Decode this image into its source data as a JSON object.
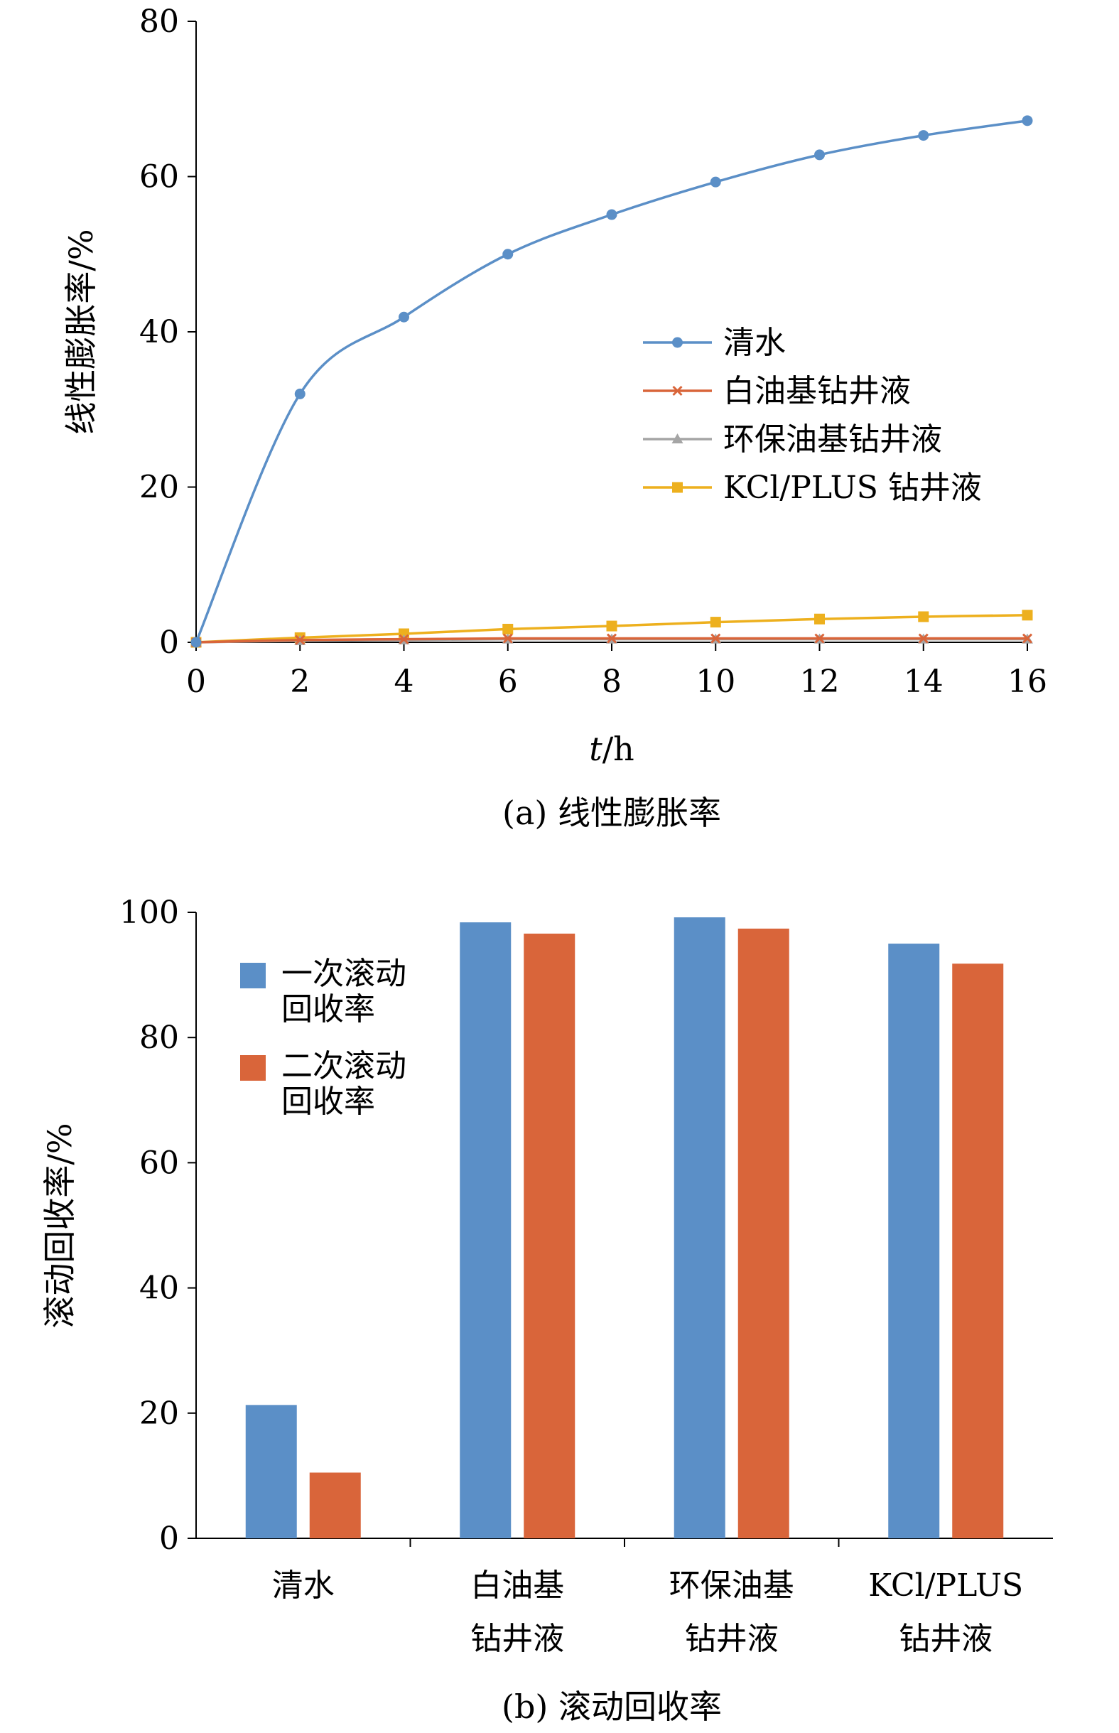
{
  "chart_data": [
    {
      "type": "line",
      "caption": "(a) 线性膨胀率",
      "xlabel_italic": "t",
      "xlabel_unit": "/h",
      "ylabel": "线性膨胀率/%",
      "xlim": [
        0,
        16
      ],
      "ylim": [
        0,
        80
      ],
      "xticks": [
        0,
        2,
        4,
        6,
        8,
        10,
        12,
        14,
        16
      ],
      "yticks": [
        0,
        20,
        40,
        60,
        80
      ],
      "grid": false,
      "legend_position": "center-right",
      "x": [
        0,
        2,
        4,
        6,
        8,
        10,
        12,
        14,
        16
      ],
      "series": [
        {
          "name": "清水",
          "color": "#5B8FC7",
          "marker": "circle",
          "values": [
            0,
            32.0,
            41.9,
            50.0,
            55.1,
            59.3,
            62.8,
            65.3,
            67.2
          ]
        },
        {
          "name": "白油基钻井液",
          "color": "#D9653A",
          "marker": "x",
          "values": [
            0,
            0.3,
            0.4,
            0.5,
            0.5,
            0.5,
            0.5,
            0.5,
            0.5
          ]
        },
        {
          "name": "环保油基钻井液",
          "color": "#A5A5A5",
          "marker": "triangle",
          "values": [
            0,
            0.2,
            0.3,
            0.4,
            0.4,
            0.4,
            0.4,
            0.4,
            0.4
          ]
        },
        {
          "name": "KCl/PLUS 钻井液",
          "color": "#EDB01E",
          "marker": "square",
          "values": [
            0,
            0.6,
            1.1,
            1.7,
            2.1,
            2.6,
            3.0,
            3.3,
            3.5
          ]
        }
      ]
    },
    {
      "type": "bar",
      "caption": "(b) 滚动回收率",
      "ylabel": "滚动回收率/%",
      "ylim": [
        0,
        100
      ],
      "yticks": [
        0,
        20,
        40,
        60,
        80,
        100
      ],
      "grid": false,
      "legend_position": "top-left",
      "categories": [
        [
          "清水"
        ],
        [
          "白油基",
          "钻井液"
        ],
        [
          "环保油基",
          "钻井液"
        ],
        [
          "KCl/PLUS",
          "钻井液"
        ]
      ],
      "series": [
        {
          "name_lines": [
            "一次滚动",
            "回收率"
          ],
          "color": "#5B8FC7",
          "values": [
            21.3,
            98.4,
            99.2,
            95.0
          ]
        },
        {
          "name_lines": [
            "二次滚动",
            "回收率"
          ],
          "color": "#D9653A",
          "values": [
            10.5,
            96.6,
            97.4,
            91.8
          ]
        }
      ]
    }
  ]
}
